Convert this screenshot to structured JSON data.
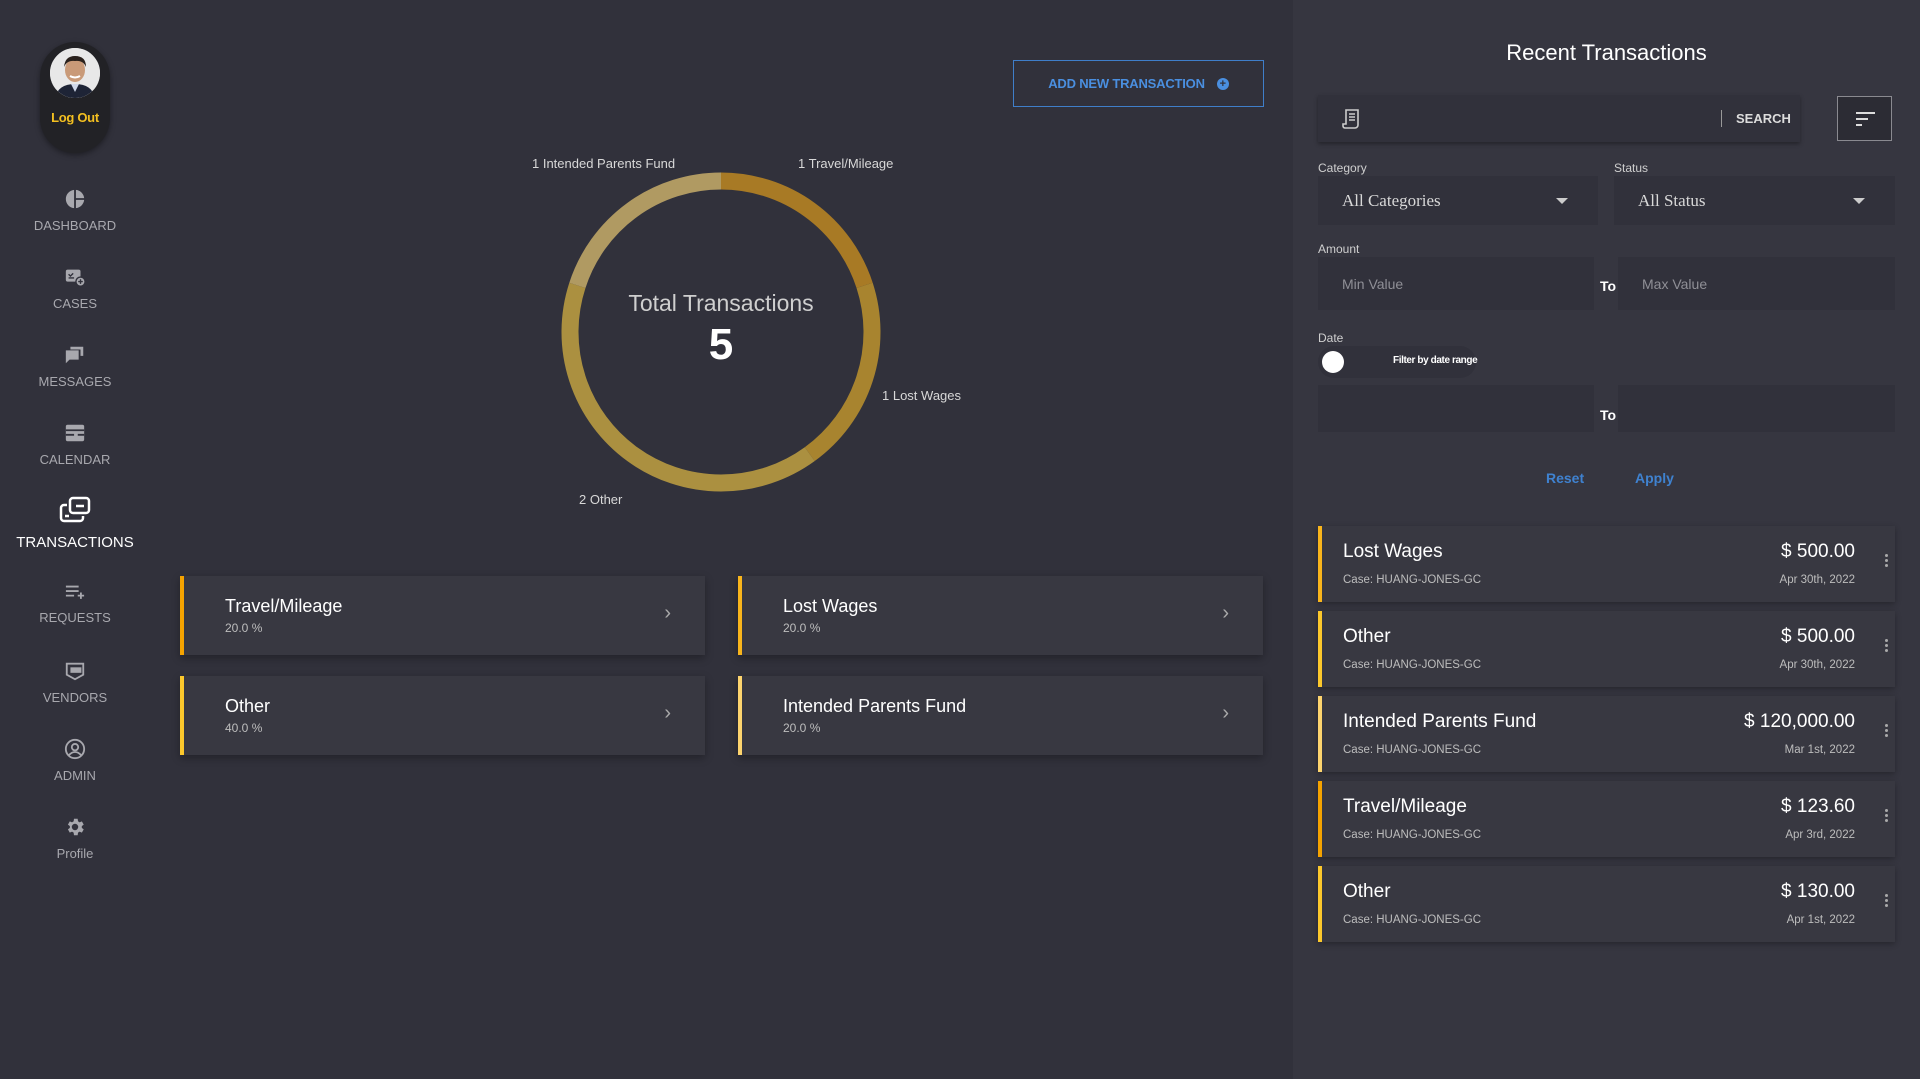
{
  "sidebar": {
    "logout_label": "Log Out",
    "items": [
      {
        "label": "DASHBOARD",
        "icon": "pie-chart-icon"
      },
      {
        "label": "CASES",
        "icon": "cases-icon"
      },
      {
        "label": "MESSAGES",
        "icon": "chat-icon"
      },
      {
        "label": "CALENDAR",
        "icon": "calendar-icon"
      },
      {
        "label": "TRANSACTIONS",
        "icon": "transactions-icon",
        "active": true
      },
      {
        "label": "REQUESTS",
        "icon": "playlist-add-icon"
      },
      {
        "label": "VENDORS",
        "icon": "vendor-icon"
      },
      {
        "label": "ADMIN",
        "icon": "account-circle-icon"
      },
      {
        "label": "Profile",
        "icon": "gear-icon"
      }
    ]
  },
  "main": {
    "add_button_label": "ADD NEW TRANSACTION",
    "total_label": "Total Transactions",
    "total_value": "5",
    "categories": [
      {
        "name": "Travel/Mileage",
        "percent": "20.0 %",
        "color": "#f5a300"
      },
      {
        "name": "Lost Wages",
        "percent": "20.0 %",
        "color": "#f9b51c"
      },
      {
        "name": "Other",
        "percent": "40.0 %",
        "color": "#fcc82c"
      },
      {
        "name": "Intended Parents Fund",
        "percent": "20.0 %",
        "color": "#fdd46e"
      }
    ]
  },
  "chart_data": {
    "type": "pie",
    "donut": true,
    "slices": [
      {
        "label": "1 Travel/Mileage",
        "category": "Travel/Mileage",
        "value": 1,
        "color": "#a87a25"
      },
      {
        "label": "1 Lost Wages",
        "category": "Lost Wages",
        "value": 1,
        "color": "#a8842f"
      },
      {
        "label": "2 Other",
        "category": "Other",
        "value": 2,
        "color": "#ab9040"
      },
      {
        "label": "1 Intended Parents Fund",
        "category": "Intended Parents Fund",
        "value": 1,
        "color": "#b09a62"
      }
    ]
  },
  "panel": {
    "title": "Recent Transactions",
    "search_label": "SEARCH",
    "search_value": "",
    "category_label": "Category",
    "category_value": "All Categories",
    "status_label": "Status",
    "status_value": "All Status",
    "amount_label": "Amount",
    "min_placeholder": "Min Value",
    "max_placeholder": "Max Value",
    "to_label": "To",
    "date_label": "Date",
    "date_toggle_label": "Filter by date range",
    "date_toggle_on": false,
    "reset_label": "Reset",
    "apply_label": "Apply",
    "transactions": [
      {
        "name": "Lost Wages",
        "case": "Case: HUANG-JONES-GC",
        "amount": "$ 500.00",
        "date": "Apr 30th, 2022",
        "color": "#f9b51c"
      },
      {
        "name": "Other",
        "case": "Case: HUANG-JONES-GC",
        "amount": "$ 500.00",
        "date": "Apr 30th, 2022",
        "color": "#fcc82c"
      },
      {
        "name": "Intended Parents Fund",
        "case": "Case: HUANG-JONES-GC",
        "amount": "$ 120,000.00",
        "date": "Mar 1st, 2022",
        "color": "#fdd46e"
      },
      {
        "name": "Travel/Mileage",
        "case": "Case: HUANG-JONES-GC",
        "amount": "$ 123.60",
        "date": "Apr 3rd, 2022",
        "color": "#f5a300"
      },
      {
        "name": "Other",
        "case": "Case: HUANG-JONES-GC",
        "amount": "$ 130.00",
        "date": "Apr 1st, 2022",
        "color": "#fcc82c"
      }
    ]
  }
}
